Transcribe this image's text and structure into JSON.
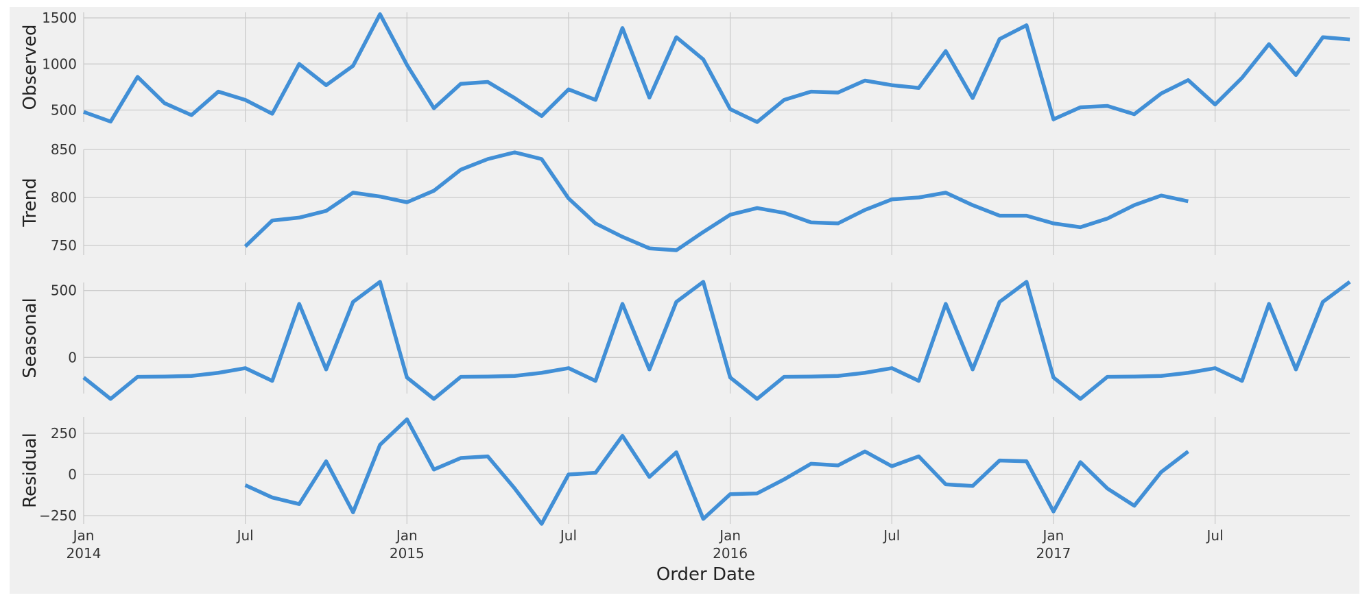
{
  "chart_data": {
    "type": "line",
    "x": [
      "2014-01",
      "2014-02",
      "2014-03",
      "2014-04",
      "2014-05",
      "2014-06",
      "2014-07",
      "2014-08",
      "2014-09",
      "2014-10",
      "2014-11",
      "2014-12",
      "2015-01",
      "2015-02",
      "2015-03",
      "2015-04",
      "2015-05",
      "2015-06",
      "2015-07",
      "2015-08",
      "2015-09",
      "2015-10",
      "2015-11",
      "2015-12",
      "2016-01",
      "2016-02",
      "2016-03",
      "2016-04",
      "2016-05",
      "2016-06",
      "2016-07",
      "2016-08",
      "2016-09",
      "2016-10",
      "2016-11",
      "2016-12",
      "2017-01",
      "2017-02",
      "2017-03",
      "2017-04",
      "2017-05",
      "2017-06",
      "2017-07",
      "2017-08",
      "2017-09",
      "2017-10",
      "2017-11",
      "2017-12"
    ],
    "xlabel": "Order Date",
    "x_tick_labels": [
      {
        "date": "2014-01",
        "label": "Jan",
        "year": "2014"
      },
      {
        "date": "2014-07",
        "label": "Jul",
        "year": ""
      },
      {
        "date": "2015-01",
        "label": "Jan",
        "year": "2015"
      },
      {
        "date": "2015-07",
        "label": "Jul",
        "year": ""
      },
      {
        "date": "2016-01",
        "label": "Jan",
        "year": "2016"
      },
      {
        "date": "2016-07",
        "label": "Jul",
        "year": ""
      },
      {
        "date": "2017-01",
        "label": "Jan",
        "year": "2017"
      },
      {
        "date": "2017-07",
        "label": "Jul",
        "year": ""
      }
    ],
    "line_color": "#418fd6",
    "grid": true,
    "panels": [
      {
        "ylabel": "Observed",
        "ylim": [
          370,
          1560
        ],
        "yticks": [
          500,
          1000,
          1500
        ],
        "values": [
          480,
          375,
          860,
          575,
          445,
          700,
          610,
          460,
          1000,
          770,
          980,
          1540,
          990,
          520,
          785,
          805,
          630,
          435,
          725,
          610,
          1390,
          635,
          1290,
          1050,
          510,
          370,
          610,
          700,
          690,
          820,
          770,
          740,
          1140,
          630,
          1270,
          1420,
          400,
          530,
          545,
          455,
          680,
          825,
          560,
          850,
          1215,
          880,
          1290,
          1265
        ]
      },
      {
        "ylabel": "Trend",
        "ylim": [
          740,
          850
        ],
        "yticks": [
          750,
          800,
          850
        ],
        "values": [
          null,
          null,
          null,
          null,
          null,
          null,
          749,
          776,
          779,
          786,
          805,
          801,
          795,
          807,
          829,
          840,
          847,
          840,
          799,
          773,
          759,
          747,
          745,
          764,
          782,
          789,
          784,
          774,
          773,
          787,
          798,
          800,
          805,
          792,
          781,
          781,
          773,
          769,
          778,
          792,
          802,
          796,
          null,
          null,
          null,
          null,
          null,
          null
        ]
      },
      {
        "ylabel": "Seasonal",
        "ylim": [
          -270,
          560
        ],
        "yticks": [
          0,
          500
        ],
        "values": [
          -150,
          -310,
          -145,
          -143,
          -138,
          -115,
          -80,
          -175,
          400,
          -90,
          415,
          565,
          -150,
          -310,
          -145,
          -143,
          -138,
          -115,
          -80,
          -175,
          400,
          -90,
          415,
          565,
          -150,
          -310,
          -145,
          -143,
          -138,
          -115,
          -80,
          -175,
          400,
          -90,
          415,
          565,
          -150,
          -310,
          -145,
          -143,
          -138,
          -115,
          -80,
          -175,
          400,
          -90,
          415,
          565
        ]
      },
      {
        "ylabel": "Residual",
        "ylim": [
          -300,
          350
        ],
        "yticks": [
          -250,
          0,
          250
        ],
        "values": [
          null,
          null,
          null,
          null,
          null,
          null,
          -65,
          -140,
          -180,
          80,
          -230,
          180,
          335,
          30,
          100,
          110,
          -85,
          -300,
          0,
          10,
          235,
          -15,
          135,
          -270,
          -120,
          -115,
          -30,
          65,
          55,
          140,
          50,
          110,
          -60,
          -70,
          85,
          80,
          -225,
          75,
          -85,
          -190,
          15,
          140,
          null,
          null,
          null,
          null,
          null,
          null
        ]
      }
    ]
  }
}
